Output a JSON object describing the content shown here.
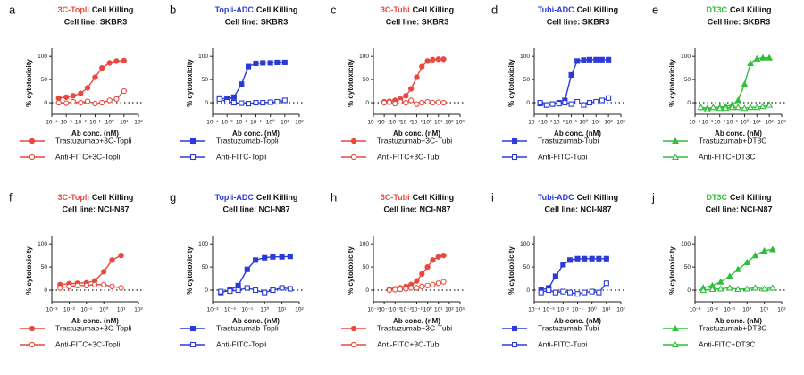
{
  "chart_data": [
    {
      "type": "line",
      "panel": "a",
      "title_drug": "3C-Topli",
      "title_drug_color": "#e8493f",
      "title": "Cell Killing",
      "subtitle": "Cell line: SKBR3",
      "marker": "circle",
      "xlabel": "Ab conc. (nM)",
      "ylabel": "% cytotoxicity",
      "xscale": "log",
      "xlim": [
        0.0001,
        100
      ],
      "xticks": [
        {
          "value": 0.0001,
          "label": "10⁻⁴"
        },
        {
          "value": 0.001,
          "label": "10⁻³"
        },
        {
          "value": 0.01,
          "label": "10⁻²"
        },
        {
          "value": 0.1,
          "label": "10⁻¹"
        },
        {
          "value": 1,
          "label": "10⁰"
        },
        {
          "value": 10,
          "label": "10¹"
        },
        {
          "value": 100,
          "label": "10²"
        }
      ],
      "ylim": [
        -25,
        110
      ],
      "yticks": [
        0,
        50,
        100
      ],
      "x": [
        0.0003,
        0.001,
        0.003,
        0.01,
        0.03,
        0.1,
        0.3,
        1,
        3,
        10
      ],
      "series": [
        {
          "name": "Trastuzumab+3C-Topli",
          "color": "#e8493f",
          "filled": true,
          "values": [
            10,
            12,
            15,
            20,
            32,
            55,
            75,
            86,
            90,
            91
          ]
        },
        {
          "name": "Anti-FITC+3C-Topli",
          "color": "#e8493f",
          "filled": false,
          "values": [
            0,
            -1,
            2,
            0,
            3,
            -2,
            0,
            5,
            8,
            25
          ]
        }
      ]
    },
    {
      "type": "line",
      "panel": "b",
      "title_drug": "Topli-ADC",
      "title_drug_color": "#2b3bd6",
      "title": "Cell Killing",
      "subtitle": "Cell line: SKBR3",
      "marker": "square",
      "xlabel": "Ab conc. (nM)",
      "ylabel": "% cytotoxicity",
      "xscale": "log",
      "xlim": [
        0.0001,
        100
      ],
      "xticks": [
        {
          "value": 0.0001,
          "label": "10⁻⁴"
        },
        {
          "value": 0.001,
          "label": "10⁻³"
        },
        {
          "value": 0.01,
          "label": "10⁻²"
        },
        {
          "value": 0.1,
          "label": "10⁻¹"
        },
        {
          "value": 1,
          "label": "10⁰"
        },
        {
          "value": 10,
          "label": "10¹"
        },
        {
          "value": 100,
          "label": "10²"
        }
      ],
      "ylim": [
        -25,
        110
      ],
      "yticks": [
        0,
        50,
        100
      ],
      "x": [
        0.0003,
        0.001,
        0.003,
        0.01,
        0.03,
        0.1,
        0.3,
        1,
        3,
        10
      ],
      "series": [
        {
          "name": "Trastuzumab-Topli",
          "color": "#2b3bd6",
          "filled": true,
          "values": [
            10,
            8,
            12,
            40,
            78,
            85,
            86,
            86,
            87,
            87
          ]
        },
        {
          "name": "Anti-FITC-Topli",
          "color": "#2b3bd6",
          "filled": false,
          "values": [
            8,
            2,
            0,
            -1,
            -2,
            0,
            0,
            1,
            2,
            5
          ]
        }
      ]
    },
    {
      "type": "line",
      "panel": "c",
      "title_drug": "3C-Tubi",
      "title_drug_color": "#e8493f",
      "title": "Cell Killing",
      "subtitle": "Cell line: SKBR3",
      "marker": "circle",
      "xlabel": "Ab conc. (nM)",
      "ylabel": "% cytotoxicity",
      "xscale": "log",
      "xlim": [
        1e-05,
        1000
      ],
      "xticks": [
        {
          "value": 1e-05,
          "label": "10⁻⁵"
        },
        {
          "value": 0.0001,
          "label": "10⁻⁴"
        },
        {
          "value": 0.001,
          "label": "10⁻³"
        },
        {
          "value": 0.01,
          "label": "10⁻²"
        },
        {
          "value": 0.1,
          "label": "10⁻¹"
        },
        {
          "value": 1,
          "label": "10⁰"
        },
        {
          "value": 10,
          "label": "10¹"
        },
        {
          "value": 100,
          "label": "10²"
        },
        {
          "value": 1000,
          "label": "10³"
        }
      ],
      "ylim": [
        -25,
        110
      ],
      "yticks": [
        0,
        50,
        100
      ],
      "x": [
        0.0001,
        0.0003,
        0.001,
        0.003,
        0.01,
        0.03,
        0.1,
        0.3,
        1,
        3,
        10,
        30
      ],
      "series": [
        {
          "name": "Trastuzumab+3C-Tubi",
          "color": "#e8493f",
          "filled": true,
          "values": [
            2,
            3,
            5,
            8,
            15,
            30,
            55,
            78,
            90,
            93,
            94,
            94
          ]
        },
        {
          "name": "Anti-FITC+3C-Tubi",
          "color": "#e8493f",
          "filled": false,
          "values": [
            0,
            1,
            -2,
            2,
            0,
            5,
            -3,
            0,
            2,
            0,
            1,
            0
          ]
        }
      ]
    },
    {
      "type": "line",
      "panel": "d",
      "title_drug": "Tubi-ADC",
      "title_drug_color": "#2b3bd6",
      "title": "Cell Killing",
      "subtitle": "Cell line: SKBR3",
      "marker": "square",
      "xlabel": "Ab conc. (nM)",
      "ylabel": "% cytotoxicity",
      "xscale": "log",
      "xlim": [
        0.0001,
        1000
      ],
      "xticks": [
        {
          "value": 0.0001,
          "label": "10⁻⁴"
        },
        {
          "value": 0.001,
          "label": "10⁻³"
        },
        {
          "value": 0.01,
          "label": "10⁻²"
        },
        {
          "value": 0.1,
          "label": "10⁻¹"
        },
        {
          "value": 1,
          "label": "10⁰"
        },
        {
          "value": 10,
          "label": "10¹"
        },
        {
          "value": 100,
          "label": "10²"
        },
        {
          "value": 1000,
          "label": "10³"
        }
      ],
      "ylim": [
        -25,
        110
      ],
      "yticks": [
        0,
        50,
        100
      ],
      "x": [
        0.0003,
        0.001,
        0.003,
        0.01,
        0.03,
        0.1,
        0.3,
        1,
        3,
        10,
        30,
        100
      ],
      "series": [
        {
          "name": "Trastuzumab-Tubi",
          "color": "#2b3bd6",
          "filled": true,
          "values": [
            -2,
            -5,
            -3,
            0,
            5,
            60,
            90,
            92,
            93,
            93,
            93,
            93
          ]
        },
        {
          "name": "Anti-FITC-Tubi",
          "color": "#2b3bd6",
          "filled": false,
          "values": [
            0,
            -5,
            -3,
            -2,
            0,
            -3,
            2,
            -5,
            0,
            2,
            5,
            10
          ]
        }
      ]
    },
    {
      "type": "line",
      "panel": "e",
      "title_drug": "DT3C",
      "title_drug_color": "#2fbf3a",
      "title": "Cell Killing",
      "subtitle": "Cell line: SKBR3",
      "marker": "triangle",
      "xlabel": "Ab conc. (nM)",
      "ylabel": "% cytotoxicity",
      "xscale": "log",
      "xlim": [
        0.0001,
        1000
      ],
      "xticks": [
        {
          "value": 0.0001,
          "label": "10⁻⁴"
        },
        {
          "value": 0.001,
          "label": "10⁻³"
        },
        {
          "value": 0.01,
          "label": "10⁻²"
        },
        {
          "value": 0.1,
          "label": "10⁻¹"
        },
        {
          "value": 1,
          "label": "10⁰"
        },
        {
          "value": 10,
          "label": "10¹"
        },
        {
          "value": 100,
          "label": "10²"
        },
        {
          "value": 1000,
          "label": "10³"
        }
      ],
      "ylim": [
        -25,
        110
      ],
      "yticks": [
        0,
        50,
        100
      ],
      "x": [
        0.0003,
        0.001,
        0.003,
        0.01,
        0.03,
        0.1,
        0.3,
        1,
        3,
        10,
        30,
        100
      ],
      "series": [
        {
          "name": "Trastuzumab+DT3C",
          "color": "#2fbf3a",
          "filled": true,
          "values": [
            -10,
            -12,
            -10,
            -10,
            -8,
            -5,
            5,
            40,
            85,
            95,
            97,
            97
          ]
        },
        {
          "name": "Anti-FITC+DT3C",
          "color": "#2fbf3a",
          "filled": false,
          "values": [
            -10,
            -15,
            -10,
            -12,
            -12,
            -10,
            -10,
            -12,
            -10,
            -10,
            -8,
            -5
          ]
        }
      ]
    },
    {
      "type": "line",
      "panel": "f",
      "title_drug": "3C-Topli",
      "title_drug_color": "#e8493f",
      "title": "Cell Killing",
      "subtitle": "Cell line: NCI-N87",
      "marker": "circle",
      "xlabel": "Ab conc. (nM)",
      "ylabel": "% cytotoxicity",
      "xscale": "log",
      "xlim": [
        0.001,
        100
      ],
      "xticks": [
        {
          "value": 0.001,
          "label": "10⁻³"
        },
        {
          "value": 0.01,
          "label": "10⁻²"
        },
        {
          "value": 0.1,
          "label": "10⁻¹"
        },
        {
          "value": 1,
          "label": "10⁰"
        },
        {
          "value": 10,
          "label": "10¹"
        },
        {
          "value": 100,
          "label": "10²"
        }
      ],
      "ylim": [
        -25,
        110
      ],
      "yticks": [
        0,
        50,
        100
      ],
      "x": [
        0.003,
        0.01,
        0.03,
        0.1,
        0.3,
        1,
        3,
        10
      ],
      "series": [
        {
          "name": "Trastuzumab+3C-Topli",
          "color": "#e8493f",
          "filled": true,
          "values": [
            12,
            14,
            15,
            16,
            20,
            40,
            65,
            75
          ]
        },
        {
          "name": "Anti-FITC+3C-Topli",
          "color": "#e8493f",
          "filled": false,
          "values": [
            5,
            8,
            10,
            10,
            12,
            12,
            8,
            5
          ]
        }
      ]
    },
    {
      "type": "line",
      "panel": "g",
      "title_drug": "Topli-ADC",
      "title_drug_color": "#2b3bd6",
      "title": "Cell Killing",
      "subtitle": "Cell line: NCI-N87",
      "marker": "square",
      "xlabel": "Ab conc. (nM)",
      "ylabel": "% cytotoxicity",
      "xscale": "log",
      "xlim": [
        0.001,
        100
      ],
      "xticks": [
        {
          "value": 0.001,
          "label": "10⁻³"
        },
        {
          "value": 0.01,
          "label": "10⁻²"
        },
        {
          "value": 0.1,
          "label": "10⁻¹"
        },
        {
          "value": 1,
          "label": "10⁰"
        },
        {
          "value": 10,
          "label": "10¹"
        },
        {
          "value": 100,
          "label": "10²"
        }
      ],
      "ylim": [
        -25,
        110
      ],
      "yticks": [
        0,
        50,
        100
      ],
      "x": [
        0.003,
        0.01,
        0.03,
        0.1,
        0.3,
        1,
        3,
        10,
        30
      ],
      "series": [
        {
          "name": "Trastuzumab-Topli",
          "color": "#2b3bd6",
          "filled": true,
          "values": [
            -5,
            0,
            10,
            45,
            65,
            70,
            72,
            72,
            73
          ]
        },
        {
          "name": "Anti-FITC-Topli",
          "color": "#2b3bd6",
          "filled": false,
          "values": [
            -3,
            -2,
            0,
            5,
            0,
            -5,
            0,
            5,
            3
          ]
        }
      ]
    },
    {
      "type": "line",
      "panel": "h",
      "title_drug": "3C-Tubi",
      "title_drug_color": "#e8493f",
      "title": "Cell Killing",
      "subtitle": "Cell line: NCI-N87",
      "marker": "circle",
      "xlabel": "Ab conc. (nM)",
      "ylabel": "% cytotoxicity",
      "xscale": "log",
      "xlim": [
        1e-05,
        1000
      ],
      "xticks": [
        {
          "value": 1e-05,
          "label": "10⁻⁵"
        },
        {
          "value": 0.0001,
          "label": "10⁻⁴"
        },
        {
          "value": 0.001,
          "label": "10⁻³"
        },
        {
          "value": 0.01,
          "label": "10⁻²"
        },
        {
          "value": 0.1,
          "label": "10⁻¹"
        },
        {
          "value": 1,
          "label": "10⁰"
        },
        {
          "value": 10,
          "label": "10¹"
        },
        {
          "value": 100,
          "label": "10²"
        },
        {
          "value": 1000,
          "label": "10³"
        }
      ],
      "ylim": [
        -25,
        110
      ],
      "yticks": [
        0,
        50,
        100
      ],
      "x": [
        0.0003,
        0.001,
        0.003,
        0.01,
        0.03,
        0.1,
        0.3,
        1,
        3,
        10,
        30
      ],
      "series": [
        {
          "name": "Trastuzumab+3C-Tubi",
          "color": "#e8493f",
          "filled": true,
          "values": [
            2,
            3,
            5,
            8,
            12,
            20,
            35,
            50,
            65,
            72,
            75
          ]
        },
        {
          "name": "Anti-FITC+3C-Tubi",
          "color": "#e8493f",
          "filled": false,
          "values": [
            0,
            1,
            2,
            3,
            5,
            5,
            8,
            10,
            12,
            15,
            18
          ]
        }
      ]
    },
    {
      "type": "line",
      "panel": "i",
      "title_drug": "Tubi-ADC",
      "title_drug_color": "#2b3bd6",
      "title": "Cell Killing",
      "subtitle": "Cell line: NCI-N87",
      "marker": "square",
      "xlabel": "Ab conc. (nM)",
      "ylabel": "% cytotoxicity",
      "xscale": "log",
      "xlim": [
        0.0001,
        100
      ],
      "xticks": [
        {
          "value": 0.0001,
          "label": "10⁻⁴"
        },
        {
          "value": 0.001,
          "label": "10⁻³"
        },
        {
          "value": 0.01,
          "label": "10⁻²"
        },
        {
          "value": 0.1,
          "label": "10⁻¹"
        },
        {
          "value": 1,
          "label": "10⁰"
        },
        {
          "value": 10,
          "label": "10¹"
        },
        {
          "value": 100,
          "label": "10²"
        }
      ],
      "ylim": [
        -25,
        110
      ],
      "yticks": [
        0,
        50,
        100
      ],
      "x": [
        0.0003,
        0.001,
        0.003,
        0.01,
        0.03,
        0.1,
        0.3,
        1,
        3,
        10
      ],
      "series": [
        {
          "name": "Trastuzumab-Tubi",
          "color": "#2b3bd6",
          "filled": true,
          "values": [
            0,
            5,
            30,
            55,
            65,
            68,
            68,
            68,
            68,
            68
          ]
        },
        {
          "name": "Anti-FITC-Tubi",
          "color": "#2b3bd6",
          "filled": false,
          "values": [
            -5,
            0,
            -5,
            -3,
            -5,
            -8,
            -5,
            -3,
            -5,
            15
          ]
        }
      ]
    },
    {
      "type": "line",
      "panel": "j",
      "title_drug": "DT3C",
      "title_drug_color": "#2fbf3a",
      "title": "Cell Killing",
      "subtitle": "Cell line: NCI-N87",
      "marker": "triangle",
      "xlabel": "Ab conc. (nM)",
      "ylabel": "% cytotoxicity",
      "xscale": "log",
      "xlim": [
        0.001,
        100
      ],
      "xticks": [
        {
          "value": 0.001,
          "label": "10⁻³"
        },
        {
          "value": 0.01,
          "label": "10⁻²"
        },
        {
          "value": 0.1,
          "label": "10⁻¹"
        },
        {
          "value": 1,
          "label": "10⁰"
        },
        {
          "value": 10,
          "label": "10¹"
        },
        {
          "value": 100,
          "label": "10²"
        }
      ],
      "ylim": [
        -25,
        110
      ],
      "yticks": [
        0,
        50,
        100
      ],
      "x": [
        0.003,
        0.01,
        0.03,
        0.1,
        0.3,
        1,
        3,
        10,
        30
      ],
      "series": [
        {
          "name": "Trastuzumab+DT3C",
          "color": "#2fbf3a",
          "filled": true,
          "values": [
            5,
            10,
            18,
            30,
            45,
            60,
            75,
            85,
            88
          ]
        },
        {
          "name": "Anti-FITC+DT3C",
          "color": "#2fbf3a",
          "filled": false,
          "values": [
            0,
            2,
            3,
            5,
            2,
            3,
            5,
            3,
            5
          ]
        }
      ]
    }
  ]
}
